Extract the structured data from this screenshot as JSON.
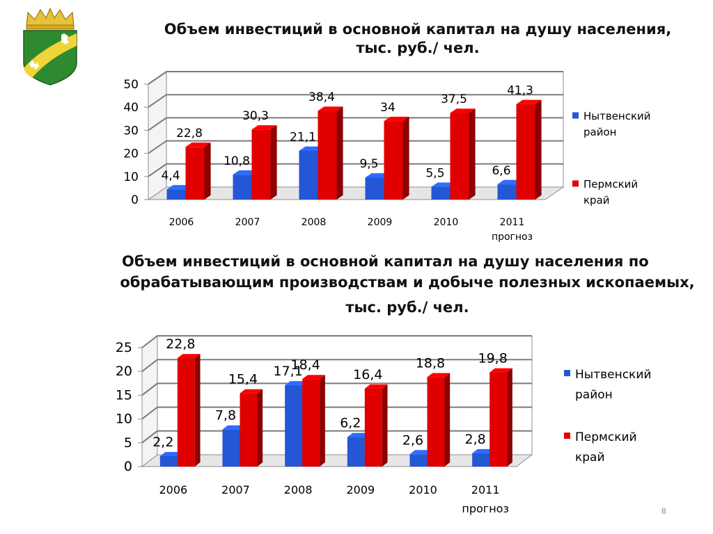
{
  "slide": {
    "page_number": "8"
  },
  "colors": {
    "nyt": "#2456d6",
    "perm": "#e00000"
  },
  "chart_data": [
    {
      "type": "bar",
      "title_lines": [
        "Объем инвестиций в основной капитал на душу населения,",
        "тыс. руб./ чел."
      ],
      "categories": [
        "2006",
        "2007",
        "2008",
        "2009",
        "2010",
        "2011"
      ],
      "category_sublabels": [
        "",
        "",
        "",
        "",
        "",
        "прогноз"
      ],
      "ylim": [
        0,
        50
      ],
      "yticks": [
        "0",
        "10",
        "20",
        "30",
        "40",
        "50"
      ],
      "series": [
        {
          "name": "Нытвенский район",
          "legend_lines": [
            "Нытвенский",
            "район"
          ],
          "values": [
            4.4,
            10.8,
            21.1,
            9.5,
            5.5,
            6.6
          ],
          "labels": [
            "4,4",
            "10,8",
            "21,1",
            "9,5",
            "5,5",
            "6,6"
          ]
        },
        {
          "name": "Пермский край",
          "legend_lines": [
            "Пермский",
            "край"
          ],
          "values": [
            22.8,
            30.3,
            38.4,
            34,
            37.5,
            41.3
          ],
          "labels": [
            "22,8",
            "30,3",
            "38,4",
            "34",
            "37,5",
            "41,3"
          ]
        }
      ],
      "grid": true,
      "legend": "right"
    },
    {
      "type": "bar",
      "title_lines": [
        "Объем инвестиций в основной капитал на душу населения по",
        "обрабатывающим производствам и добыче полезных ископаемых,",
        "тыс. руб./ чел."
      ],
      "categories": [
        "2006",
        "2007",
        "2008",
        "2009",
        "2010",
        "2011"
      ],
      "category_sublabels": [
        "",
        "",
        "",
        "",
        "",
        "прогноз"
      ],
      "ylim": [
        0,
        25
      ],
      "yticks": [
        "0",
        "5",
        "10",
        "15",
        "20",
        "25"
      ],
      "series": [
        {
          "name": "Нытвенский район",
          "legend_lines": [
            "Нытвенский",
            "район"
          ],
          "values": [
            2.2,
            7.8,
            17.1,
            6.2,
            2.6,
            2.8
          ],
          "labels": [
            "2,2",
            "7,8",
            "17,1",
            "6,2",
            "2,6",
            "2,8"
          ]
        },
        {
          "name": "Пермский край",
          "legend_lines": [
            "Пермский",
            "край"
          ],
          "values": [
            22.8,
            15.4,
            18.4,
            16.4,
            18.8,
            19.8
          ],
          "labels": [
            "22,8",
            "15,4",
            "18,4",
            "16,4",
            "18,8",
            "19,8"
          ]
        }
      ],
      "grid": true,
      "legend": "right"
    }
  ]
}
